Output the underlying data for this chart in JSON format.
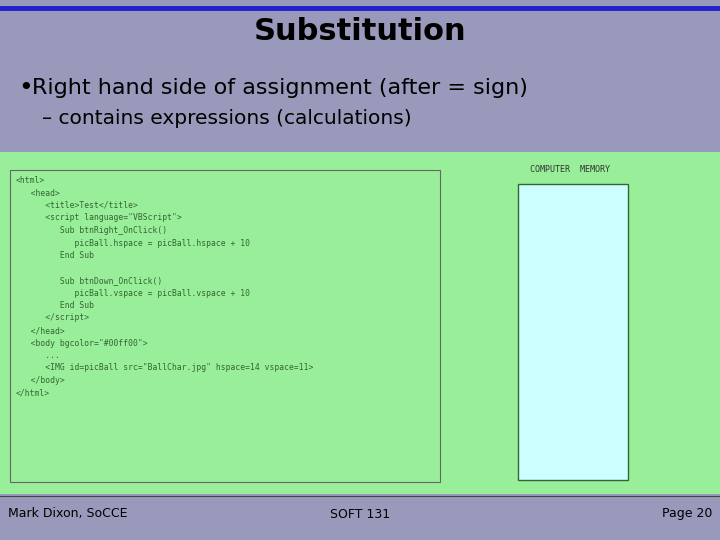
{
  "title": "Substitution",
  "title_fontsize": 22,
  "title_fontweight": "bold",
  "bullet_text": "Right hand side of assignment (after = sign)",
  "sub_bullet_text": "– contains expressions (calculations)",
  "bullet_fontsize": 16,
  "sub_bullet_fontsize": 14.5,
  "bg_color": "#9999bb",
  "header_line_color": "#2222cc",
  "footer_line_color": "#444444",
  "green_bg_color": "#99ee99",
  "code_box_color": "#99ee99",
  "code_box_border": "#666666",
  "memory_box_color": "#ccffff",
  "memory_box_border": "#336633",
  "memory_label": "COMPUTER  MEMORY",
  "footer_left": "Mark Dixon, SoCCE",
  "footer_center": "SOFT 131",
  "footer_right": "Page 20",
  "footer_fontsize": 9,
  "code_lines": [
    "<html>",
    "   <head>",
    "      <title>Test</title>",
    "      <script language=\"VBScript\">",
    "         Sub btnRight_OnClick()",
    "            picBall.hspace = picBall.hspace + 10",
    "         End Sub",
    "",
    "         Sub btnDown_OnClick()",
    "            picBall.vspace = picBall.vspace + 10",
    "         End Sub",
    "      </script>",
    "   </head>",
    "   <body bgcolor=\"#00ff00\">",
    "      ...",
    "      <IMG id=picBall src=\"BallChar.jpg\" hspace=14 vspace=11>",
    "   </body>",
    "</html>"
  ],
  "code_color": "#336633",
  "code_fontsize": 5.8
}
